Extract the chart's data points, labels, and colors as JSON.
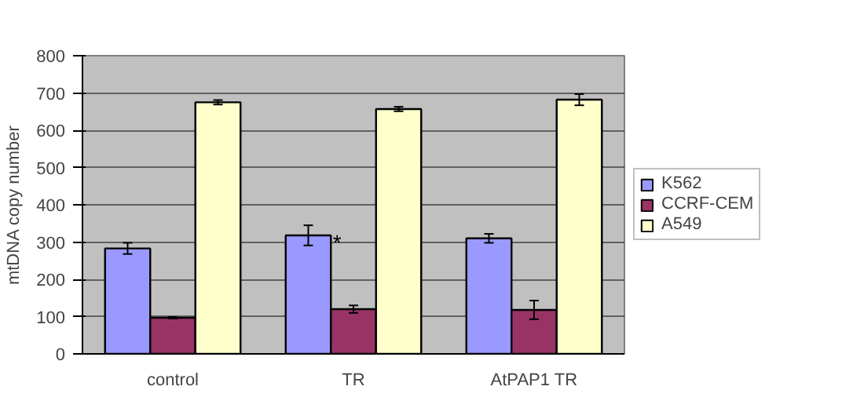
{
  "chart_data": {
    "type": "bar",
    "ylabel": "mtDNA copy number",
    "categories": [
      "control",
      "TR",
      "AtPAP1 TR"
    ],
    "series": [
      {
        "name": "K562",
        "color": "#9999ff",
        "values": [
          283,
          318,
          310
        ],
        "errors": [
          15,
          27,
          12
        ]
      },
      {
        "name": "CCRF-CEM",
        "color": "#993366",
        "values": [
          97,
          120,
          118
        ],
        "errors": [
          2,
          10,
          25
        ]
      },
      {
        "name": "A549",
        "color": "#ffffcc",
        "values": [
          675,
          657,
          682
        ],
        "errors": [
          6,
          6,
          15
        ]
      }
    ],
    "ylim": [
      0,
      800
    ],
    "yticks": [
      0,
      100,
      200,
      300,
      400,
      500,
      600,
      700,
      800
    ],
    "annotations": [
      "*"
    ],
    "grid": "y",
    "legend": "right"
  }
}
